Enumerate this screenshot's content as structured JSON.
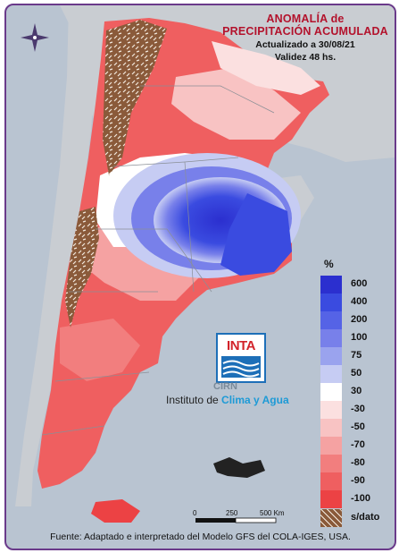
{
  "title_line1": "ANOMALÍA de",
  "title_line2": "PRECIPITACIÓN ACUMULADA",
  "updated": "Actualizado a 30/08/21",
  "validity": "Validez 48 hs.",
  "legend_unit": "%",
  "legend": [
    {
      "label": "600",
      "color": "#2b2fcf"
    },
    {
      "label": "400",
      "color": "#3a4be0"
    },
    {
      "label": "200",
      "color": "#5563e6"
    },
    {
      "label": "100",
      "color": "#7880ea"
    },
    {
      "label": "75",
      "color": "#9aa3ee"
    },
    {
      "label": "50",
      "color": "#c6ccf3"
    },
    {
      "label": "30",
      "color": "#ffffff"
    },
    {
      "label": "-30",
      "color": "#fbe0e0"
    },
    {
      "label": "-50",
      "color": "#f8c3c3"
    },
    {
      "label": "-70",
      "color": "#f5a2a2"
    },
    {
      "label": "-80",
      "color": "#f27e7e"
    },
    {
      "label": "-90",
      "color": "#ef5f60"
    },
    {
      "label": "-100",
      "color": "#ec4244"
    }
  ],
  "no_data_label": "s/dato",
  "scale_labels": [
    "0",
    "250",
    "500 Km"
  ],
  "logo": {
    "text": "INTA",
    "cirn": "CIRN",
    "institute_prefix": "Instituto de ",
    "institute_highlight": "Clima y Agua"
  },
  "footer": "Fuente: Adaptado e interpretado del Modelo GFS del COLA-IGES, USA.",
  "colors": {
    "sea": "#b9c4d1",
    "land_outside": "#c9cdd2",
    "no_data": "#8a5a3a",
    "border": "#6a3a8a"
  }
}
